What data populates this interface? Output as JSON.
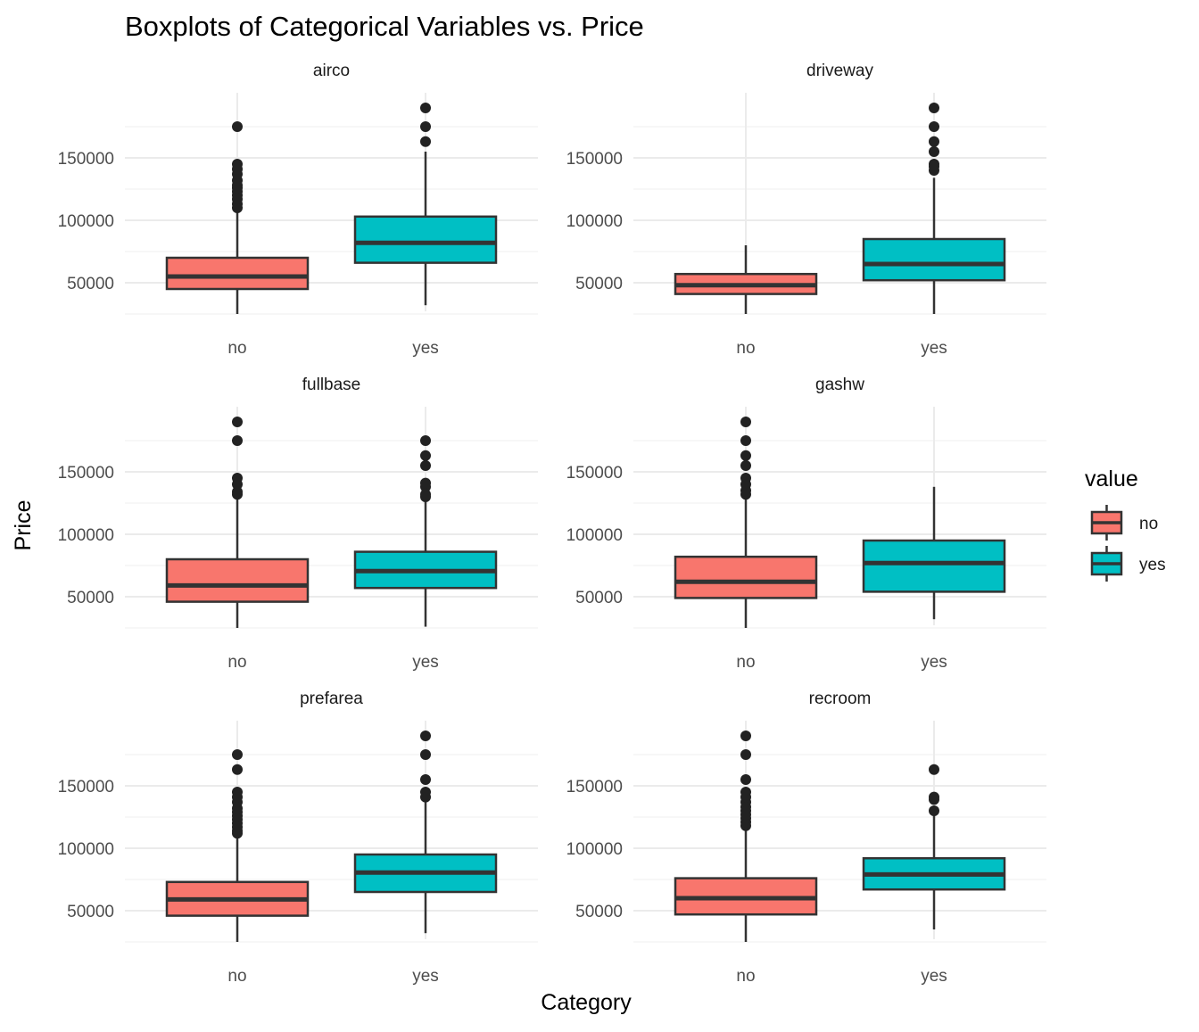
{
  "chart_data": {
    "type": "boxplot",
    "title": "Boxplots of Categorical Variables vs. Price",
    "xlabel": "Category",
    "ylabel": "Price",
    "ylim": [
      25000,
      200000
    ],
    "yticks": [
      50000,
      100000,
      150000
    ],
    "yticks_minor": [
      25000,
      75000,
      125000,
      175000
    ],
    "categories": [
      "no",
      "yes"
    ],
    "legend": {
      "title": "value",
      "position": "right",
      "entries": [
        {
          "label": "no",
          "color": "#F8766D"
        },
        {
          "label": "yes",
          "color": "#00BFC4"
        }
      ]
    },
    "panels": [
      {
        "name": "airco",
        "boxes": {
          "no": {
            "lower": 25000,
            "q1": 45000,
            "median": 55000,
            "q3": 70000,
            "upper": 107500,
            "outliers": [
              110000,
              113000,
              117000,
              120000,
              123000,
              126000,
              128000,
              132000,
              137000,
              141000,
              145000,
              175000
            ]
          },
          "yes": {
            "lower": 32000,
            "q1": 66000,
            "median": 82000,
            "q3": 103000,
            "upper": 155000,
            "outliers": [
              163000,
              175000,
              190000
            ]
          }
        }
      },
      {
        "name": "driveway",
        "boxes": {
          "no": {
            "lower": 25000,
            "q1": 41000,
            "median": 48000,
            "q3": 57000,
            "upper": 80000,
            "outliers": []
          },
          "yes": {
            "lower": 25000,
            "q1": 52000,
            "median": 65000,
            "q3": 85000,
            "upper": 134000,
            "outliers": [
              140000,
              143000,
              145000,
              155000,
              163000,
              175000,
              190000
            ]
          }
        }
      },
      {
        "name": "fullbase",
        "boxes": {
          "no": {
            "lower": 25000,
            "q1": 46000,
            "median": 59000,
            "q3": 80000,
            "upper": 130000,
            "outliers": [
              132000,
              134000,
              140000,
              145000,
              175000,
              190000
            ]
          },
          "yes": {
            "lower": 26000,
            "q1": 57000,
            "median": 70500,
            "q3": 86000,
            "upper": 129000,
            "outliers": [
              130000,
              132000,
              138000,
              141000,
              155000,
              163000,
              175000
            ]
          }
        }
      },
      {
        "name": "gashw",
        "boxes": {
          "no": {
            "lower": 25000,
            "q1": 49000,
            "median": 62000,
            "q3": 82000,
            "upper": 130000,
            "outliers": [
              132000,
              135000,
              140000,
              145000,
              155000,
              163000,
              175000,
              190000
            ]
          },
          "yes": {
            "lower": 32000,
            "q1": 54000,
            "median": 77000,
            "q3": 95000,
            "upper": 138000,
            "outliers": []
          }
        }
      },
      {
        "name": "prefarea",
        "boxes": {
          "no": {
            "lower": 25000,
            "q1": 46000,
            "median": 59000,
            "q3": 73000,
            "upper": 110000,
            "outliers": [
              112000,
              114000,
              117000,
              120000,
              123000,
              126000,
              129000,
              132000,
              137000,
              141000,
              145000,
              163000,
              175000
            ]
          },
          "yes": {
            "lower": 32000,
            "q1": 65000,
            "median": 80500,
            "q3": 95000,
            "upper": 139000,
            "outliers": [
              141000,
              145000,
              155000,
              175000,
              190000
            ]
          }
        }
      },
      {
        "name": "recroom",
        "boxes": {
          "no": {
            "lower": 25000,
            "q1": 47000,
            "median": 60000,
            "q3": 76000,
            "upper": 116000,
            "outliers": [
              118000,
              121000,
              124000,
              127000,
              130000,
              133000,
              137000,
              141000,
              145000,
              155000,
              175000,
              190000
            ]
          },
          "yes": {
            "lower": 35000,
            "q1": 67000,
            "median": 79000,
            "q3": 92000,
            "upper": 129000,
            "outliers": [
              130000,
              139000,
              141000,
              163000
            ]
          }
        }
      }
    ]
  }
}
